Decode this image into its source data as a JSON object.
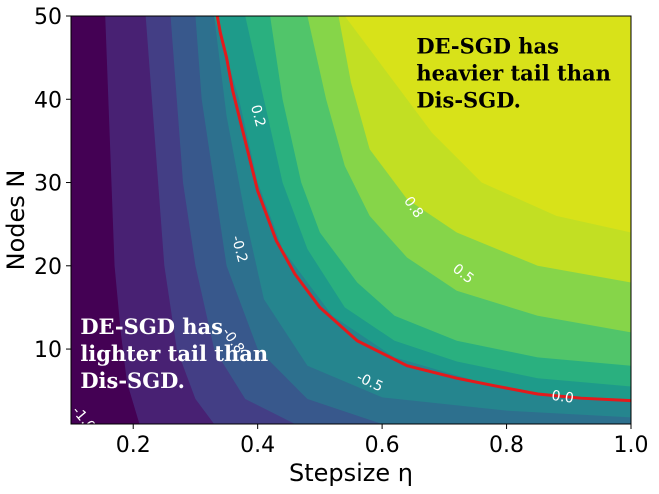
{
  "chart_data": {
    "type": "contour",
    "xlabel": "Stepsize η",
    "ylabel": "Nodes N",
    "xlim": [
      0.1,
      1.0
    ],
    "ylim": [
      1,
      50
    ],
    "x_ticks": [
      "0.2",
      "0.4",
      "0.6",
      "0.8",
      "1.0"
    ],
    "x_tick_values": [
      0.2,
      0.4,
      0.6,
      0.8,
      1.0
    ],
    "y_ticks": [
      "10",
      "20",
      "30",
      "40",
      "50"
    ],
    "y_tick_values": [
      10,
      20,
      30,
      40,
      50
    ],
    "fill_colors": [
      "#440154",
      "#482173",
      "#433e85",
      "#38588c",
      "#2d708e",
      "#25858e",
      "#1e9b8a",
      "#2ab07f",
      "#51c56a",
      "#86d549",
      "#c2df23",
      "#d8e219"
    ],
    "levels": [
      {
        "points": [
          [
            0.21,
            1
          ],
          [
            0.19,
            6
          ],
          [
            0.18,
            12
          ],
          [
            0.17,
            20
          ],
          [
            0.165,
            30
          ],
          [
            0.16,
            40
          ],
          [
            0.155,
            50
          ]
        ]
      },
      {
        "points": [
          [
            0.33,
            1
          ],
          [
            0.3,
            4
          ],
          [
            0.27,
            10
          ],
          [
            0.25,
            20
          ],
          [
            0.24,
            30
          ],
          [
            0.23,
            40
          ],
          [
            0.22,
            50
          ]
        ]
      },
      {
        "points": [
          [
            0.46,
            1
          ],
          [
            0.38,
            4
          ],
          [
            0.33,
            10
          ],
          [
            0.3,
            20
          ],
          [
            0.28,
            30
          ],
          [
            0.27,
            40
          ],
          [
            0.26,
            50
          ]
        ]
      },
      {
        "points": [
          [
            0.6,
            1
          ],
          [
            0.48,
            4
          ],
          [
            0.4,
            10
          ],
          [
            0.35,
            20
          ],
          [
            0.33,
            30
          ],
          [
            0.31,
            40
          ],
          [
            0.3,
            50
          ]
        ]
      },
      {
        "points": [
          [
            1.0,
            1.8
          ],
          [
            0.8,
            2.6
          ],
          [
            0.6,
            4.2
          ],
          [
            0.48,
            8
          ],
          [
            0.41,
            16
          ],
          [
            0.38,
            26
          ],
          [
            0.35,
            38
          ],
          [
            0.33,
            50
          ]
        ]
      },
      {
        "points": [
          [
            1.0,
            3.8
          ],
          [
            0.85,
            4.6
          ],
          [
            0.75,
            6.2
          ],
          [
            0.62,
            9
          ],
          [
            0.52,
            14
          ],
          [
            0.44,
            22
          ],
          [
            0.4,
            30
          ],
          [
            0.37,
            40
          ],
          [
            0.33,
            50
          ]
        ]
      },
      {
        "points": [
          [
            1.0,
            5.5
          ],
          [
            0.85,
            6.5
          ],
          [
            0.72,
            8.5
          ],
          [
            0.62,
            11
          ],
          [
            0.54,
            15
          ],
          [
            0.48,
            22
          ],
          [
            0.44,
            30
          ],
          [
            0.41,
            40
          ],
          [
            0.38,
            50
          ]
        ]
      },
      {
        "points": [
          [
            1.0,
            8
          ],
          [
            0.85,
            9
          ],
          [
            0.72,
            11
          ],
          [
            0.62,
            14
          ],
          [
            0.56,
            18
          ],
          [
            0.5,
            24
          ],
          [
            0.47,
            30
          ],
          [
            0.44,
            40
          ],
          [
            0.42,
            50
          ]
        ]
      },
      {
        "points": [
          [
            1.0,
            12
          ],
          [
            0.85,
            14
          ],
          [
            0.72,
            17
          ],
          [
            0.64,
            21
          ],
          [
            0.58,
            26
          ],
          [
            0.54,
            32
          ],
          [
            0.51,
            40
          ],
          [
            0.48,
            50
          ]
        ]
      },
      {
        "points": [
          [
            1.0,
            18
          ],
          [
            0.85,
            20
          ],
          [
            0.72,
            24
          ],
          [
            0.64,
            28
          ],
          [
            0.58,
            34
          ],
          [
            0.55,
            42
          ],
          [
            0.53,
            50
          ]
        ]
      },
      {
        "points": [
          [
            1.0,
            24
          ],
          [
            0.88,
            26
          ],
          [
            0.76,
            30
          ],
          [
            0.68,
            36
          ],
          [
            0.64,
            40
          ],
          [
            0.58,
            46
          ],
          [
            0.54,
            50
          ]
        ]
      }
    ],
    "zero_contour": {
      "color": "#e31a1c",
      "points": [
        [
          1.0,
          3.8
        ],
        [
          0.92,
          4.1
        ],
        [
          0.85,
          4.6
        ],
        [
          0.78,
          5.6
        ],
        [
          0.72,
          6.5
        ],
        [
          0.64,
          8.0
        ],
        [
          0.56,
          11.0
        ],
        [
          0.5,
          15.0
        ],
        [
          0.46,
          19.0
        ],
        [
          0.43,
          23.0
        ],
        [
          0.4,
          29.0
        ],
        [
          0.38,
          35.0
        ],
        [
          0.36,
          41.0
        ],
        [
          0.35,
          45.0
        ],
        [
          0.34,
          48.0
        ],
        [
          0.335,
          50.0
        ]
      ]
    },
    "contour_labels": [
      {
        "text": "0.2",
        "x": 0.4,
        "y": 38,
        "angle": 75
      },
      {
        "text": "0.8",
        "x": 0.65,
        "y": 27,
        "angle": 55
      },
      {
        "text": "0.5",
        "x": 0.73,
        "y": 19,
        "angle": 38
      },
      {
        "text": "-0.2",
        "x": 0.37,
        "y": 22,
        "angle": 75
      },
      {
        "text": "-0.8",
        "x": 0.36,
        "y": 11,
        "angle": 55
      },
      {
        "text": "-0.5",
        "x": 0.58,
        "y": 6,
        "angle": 25
      },
      {
        "text": "0.0",
        "x": 0.89,
        "y": 4.2,
        "angle": 8
      },
      {
        "text": "-1.0",
        "x": 0.12,
        "y": 1.6,
        "angle": 50
      }
    ],
    "annotations": [
      {
        "lines": [
          "DE-SGD has",
          "heavier tail than",
          "Dis-SGD."
        ],
        "x": 0.655,
        "y": 45.5,
        "color": "#000000"
      },
      {
        "lines": [
          "DE-SGD has",
          "lighter tail than",
          "Dis-SGD."
        ],
        "x": 0.115,
        "y": 11.8,
        "color": "#ffffff"
      }
    ]
  }
}
